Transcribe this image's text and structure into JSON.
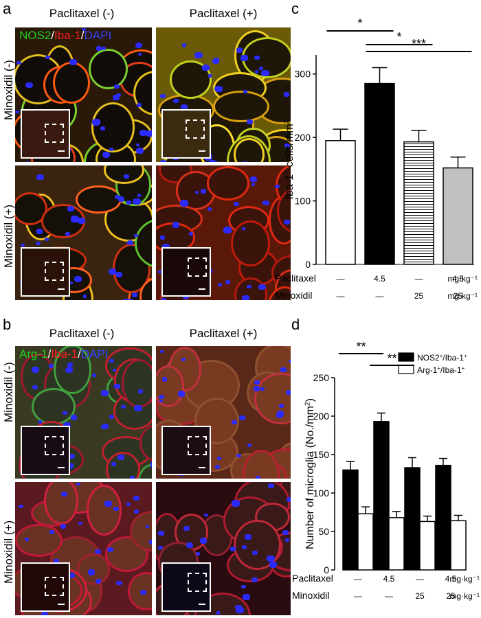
{
  "panels": {
    "a": {
      "letter": "a",
      "col_headers": [
        "Paclitaxel (-)",
        "Paclitaxel (+)"
      ],
      "row_headers": [
        "Minoxidil (-)",
        "Minoxidil (+)"
      ],
      "stain_parts": [
        {
          "text": "NOS2",
          "color": "#20d020"
        },
        {
          "text": "/",
          "color": "#ffffff"
        },
        {
          "text": "Iba-1",
          "color": "#ff2020"
        },
        {
          "text": "/",
          "color": "#ffffff"
        },
        {
          "text": "DAPI",
          "color": "#3040ff"
        }
      ]
    },
    "b": {
      "letter": "b",
      "col_headers": [
        "Paclitaxel (-)",
        "Paclitaxel (+)"
      ],
      "row_headers": [
        "Minoxidil (-)",
        "Minoxidil (+)"
      ],
      "stain_parts": [
        {
          "text": "Arg-1",
          "color": "#20d020"
        },
        {
          "text": "/",
          "color": "#ffffff"
        },
        {
          "text": "Iba-1",
          "color": "#ff2020"
        },
        {
          "text": "/",
          "color": "#ffffff"
        },
        {
          "text": "DAPI",
          "color": "#3040ff"
        }
      ]
    },
    "c": {
      "letter": "c"
    },
    "d": {
      "letter": "d"
    }
  },
  "chart_data": [
    {
      "type": "bar",
      "panel": "c",
      "ylabel": "Iba-1+ cells/mm2",
      "ylabel_parts": [
        {
          "t": "Iba-1",
          "s": "n"
        },
        {
          "t": "+",
          "s": "sup"
        },
        {
          "t": " cells/mm",
          "s": "n"
        },
        {
          "t": "2",
          "s": "sup"
        }
      ],
      "ylim": [
        0,
        330
      ],
      "yticks": [
        "0",
        "100",
        "200",
        "300"
      ],
      "ytick_values": [
        0,
        100,
        200,
        300
      ],
      "values": [
        195,
        285,
        193,
        152
      ],
      "errors": [
        18,
        25,
        18,
        17
      ],
      "fills": [
        "#ffffff",
        "#000000",
        "hatch",
        "#c0c0c0"
      ],
      "significance": [
        {
          "from": 0,
          "to": 1,
          "label": "*"
        },
        {
          "from": 1,
          "to": 2,
          "label": "*"
        },
        {
          "from": 1,
          "to": 3,
          "label": "***"
        }
      ],
      "treatments": [
        {
          "name": "Paclitaxel",
          "values": [
            "—",
            "4.5",
            "—",
            "4.5"
          ],
          "unit": "mg·kg⁻¹"
        },
        {
          "name": "Minoxidil",
          "values": [
            "—",
            "—",
            "25",
            "25"
          ],
          "unit": "mg·kg⁻¹"
        }
      ]
    },
    {
      "type": "bar",
      "panel": "d",
      "ylabel": "Number of microglia (No./mm2)",
      "ylabel_parts": [
        {
          "t": "Number of microglia (No./mm",
          "s": "n"
        },
        {
          "t": "2",
          "s": "sup"
        },
        {
          "t": ")",
          "s": "n"
        }
      ],
      "ylim": [
        0,
        250
      ],
      "yticks": [
        "0",
        "50",
        "100",
        "150",
        "200",
        "250"
      ],
      "ytick_values": [
        0,
        50,
        100,
        150,
        200,
        250
      ],
      "series": [
        {
          "name": "NOS2+/Iba-1+",
          "legend_parts": [
            {
              "t": "NOS2",
              "s": "n"
            },
            {
              "t": "+",
              "s": "sup"
            },
            {
              "t": "/Iba-1",
              "s": "n"
            },
            {
              "t": "+",
              "s": "sup"
            }
          ],
          "color": "#000000",
          "values": [
            130,
            193,
            133,
            136
          ],
          "errors": [
            11,
            11,
            13,
            9
          ]
        },
        {
          "name": "Arg-1+/Iba-1+",
          "legend_parts": [
            {
              "t": "Arg-1",
              "s": "n"
            },
            {
              "t": "+",
              "s": "sup"
            },
            {
              "t": "/Iba-1",
              "s": "n"
            },
            {
              "t": "+",
              "s": "sup"
            }
          ],
          "color": "#ffffff",
          "values": [
            73,
            68,
            63,
            64
          ],
          "errors": [
            9,
            8,
            7,
            7
          ]
        }
      ],
      "legend_position": "top-right",
      "significance": [
        {
          "from": 0,
          "to": 1,
          "label": "**"
        },
        {
          "from": 1,
          "to": 2,
          "label": "**"
        }
      ],
      "treatments": [
        {
          "name": "Paclitaxel",
          "values": [
            "—",
            "4.5",
            "—",
            "4.5"
          ],
          "unit": "mg·kg⁻¹"
        },
        {
          "name": "Minoxidil",
          "values": [
            "—",
            "—",
            "25",
            "25"
          ],
          "unit": "mg·kg⁻¹"
        }
      ]
    }
  ]
}
